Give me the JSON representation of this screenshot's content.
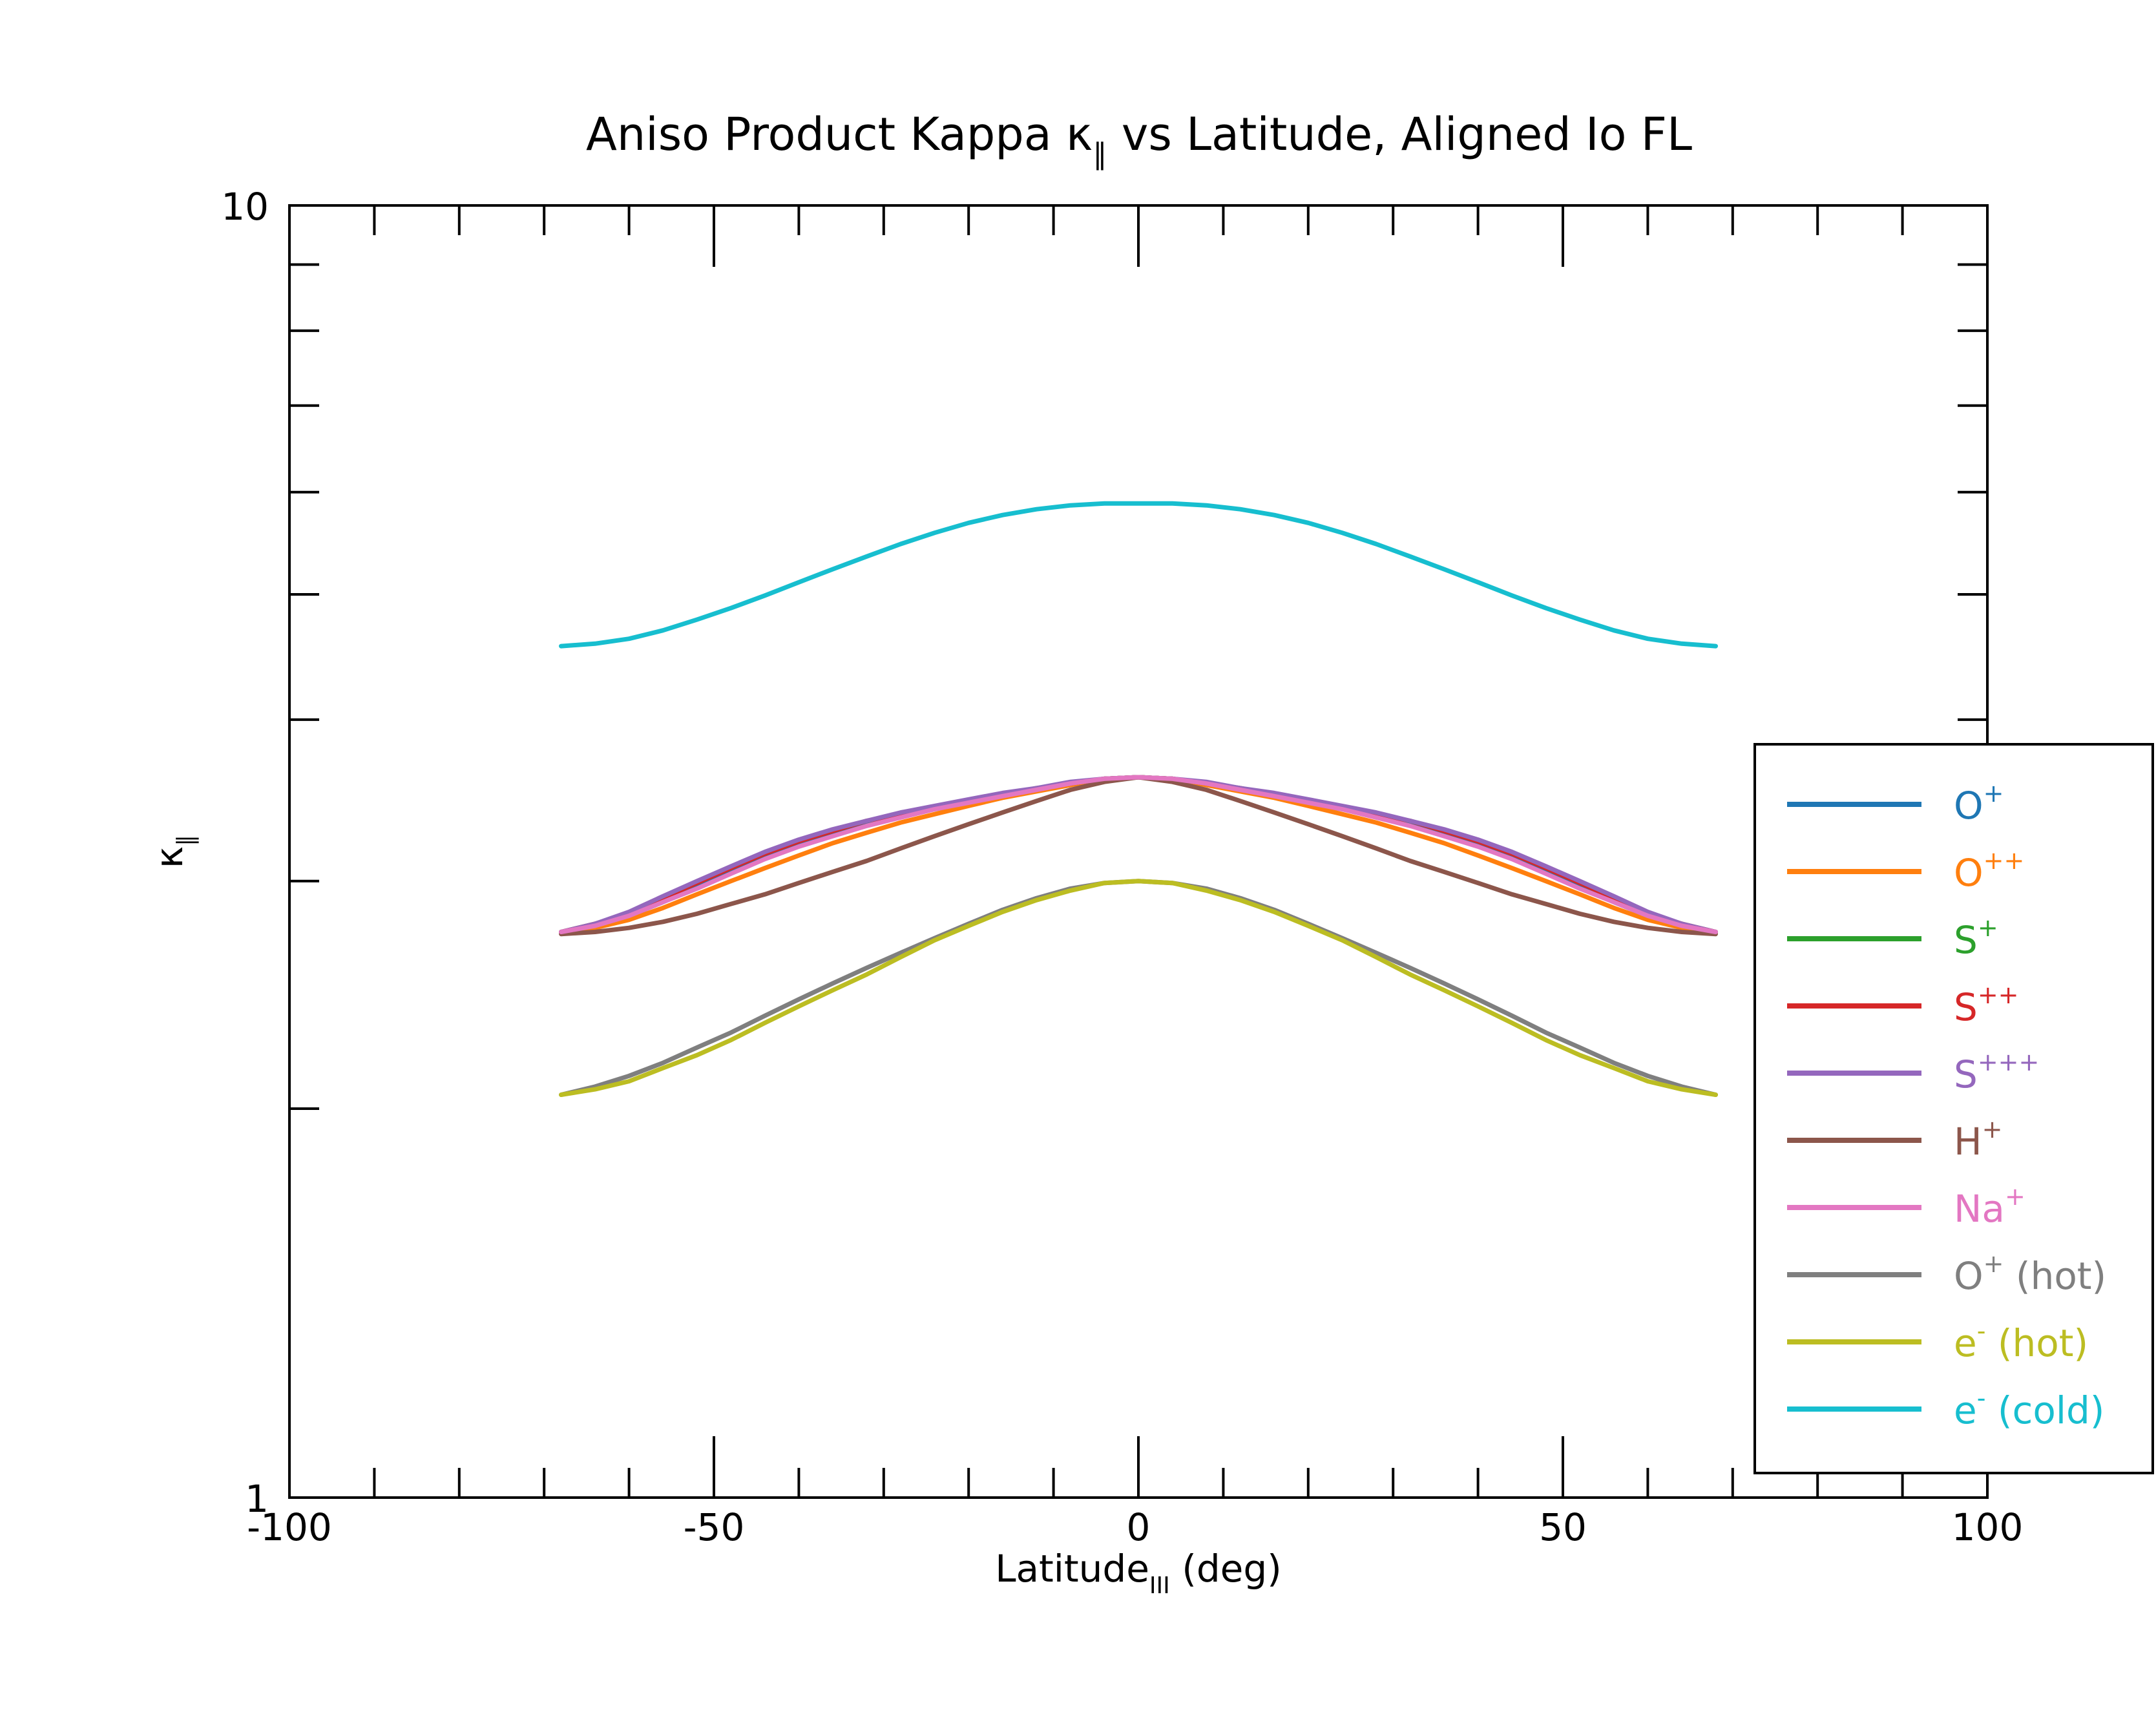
{
  "chart_data": {
    "type": "line",
    "title": {
      "main": "Aniso Product Kappa κ",
      "sub": "∥",
      "rest": " vs Latitude, Aligned Io FL"
    },
    "xlabel": {
      "main": "Latitude",
      "sub": "III",
      "rest": " (deg)"
    },
    "ylabel": {
      "main": "κ",
      "sub": "∥"
    },
    "xlim": [
      -100,
      100
    ],
    "ylim": [
      1,
      10
    ],
    "y_scale": "log",
    "x_ticks": [
      "-100",
      "-50",
      "0",
      "50",
      "100"
    ],
    "y_ticks": [
      "1",
      "10"
    ],
    "grid": false,
    "legend_position": "right",
    "x": [
      -68,
      -64,
      -60,
      -56,
      -52,
      -48,
      -44,
      -40,
      -36,
      -32,
      -28,
      -24,
      -20,
      -16,
      -12,
      -8,
      -4,
      0,
      4,
      8,
      12,
      16,
      20,
      24,
      28,
      32,
      36,
      40,
      44,
      48,
      52,
      56,
      60,
      64,
      68
    ],
    "series": [
      {
        "name": "O",
        "sup": "+",
        "rest": "",
        "color": "#1f77b4",
        "values": [
          2.74,
          2.77,
          2.82,
          2.89,
          2.97,
          3.05,
          3.13,
          3.2,
          3.27,
          3.32,
          3.37,
          3.41,
          3.45,
          3.49,
          3.53,
          3.57,
          3.6,
          3.61,
          3.6,
          3.57,
          3.53,
          3.49,
          3.45,
          3.41,
          3.37,
          3.32,
          3.27,
          3.2,
          3.13,
          3.05,
          2.97,
          2.89,
          2.82,
          2.77,
          2.74
        ]
      },
      {
        "name": "O",
        "sup": "++",
        "rest": "",
        "color": "#ff7f0e",
        "values": [
          2.74,
          2.76,
          2.8,
          2.86,
          2.93,
          3.0,
          3.07,
          3.14,
          3.21,
          3.27,
          3.33,
          3.38,
          3.43,
          3.48,
          3.52,
          3.56,
          3.6,
          3.61,
          3.6,
          3.56,
          3.52,
          3.48,
          3.43,
          3.38,
          3.33,
          3.27,
          3.21,
          3.14,
          3.07,
          3.0,
          2.93,
          2.86,
          2.8,
          2.76,
          2.74
        ]
      },
      {
        "name": "S",
        "sup": "+",
        "rest": "",
        "color": "#2ca02c",
        "values": [
          2.74,
          2.78,
          2.83,
          2.91,
          2.99,
          3.07,
          3.15,
          3.22,
          3.28,
          3.34,
          3.38,
          3.42,
          3.46,
          3.5,
          3.54,
          3.57,
          3.6,
          3.61,
          3.6,
          3.57,
          3.54,
          3.5,
          3.46,
          3.42,
          3.38,
          3.34,
          3.28,
          3.22,
          3.15,
          3.07,
          2.99,
          2.91,
          2.83,
          2.78,
          2.74
        ]
      },
      {
        "name": "S",
        "sup": "++",
        "rest": "",
        "color": "#d62728",
        "values": [
          2.74,
          2.78,
          2.83,
          2.91,
          2.99,
          3.07,
          3.15,
          3.22,
          3.28,
          3.34,
          3.38,
          3.42,
          3.46,
          3.5,
          3.54,
          3.57,
          3.6,
          3.61,
          3.6,
          3.57,
          3.54,
          3.5,
          3.46,
          3.42,
          3.38,
          3.34,
          3.28,
          3.22,
          3.15,
          3.07,
          2.99,
          2.91,
          2.83,
          2.78,
          2.74
        ]
      },
      {
        "name": "S",
        "sup": "+++",
        "rest": "",
        "color": "#9467bd",
        "values": [
          2.74,
          2.78,
          2.84,
          2.92,
          3.0,
          3.08,
          3.16,
          3.23,
          3.29,
          3.34,
          3.39,
          3.43,
          3.47,
          3.51,
          3.54,
          3.58,
          3.6,
          3.61,
          3.6,
          3.58,
          3.54,
          3.51,
          3.47,
          3.43,
          3.39,
          3.34,
          3.29,
          3.23,
          3.16,
          3.08,
          3.0,
          2.92,
          2.84,
          2.78,
          2.74
        ]
      },
      {
        "name": "H",
        "sup": "+",
        "rest": "",
        "color": "#8c564b",
        "values": [
          2.73,
          2.74,
          2.76,
          2.79,
          2.83,
          2.88,
          2.93,
          2.99,
          3.05,
          3.11,
          3.18,
          3.25,
          3.32,
          3.39,
          3.46,
          3.53,
          3.58,
          3.61,
          3.58,
          3.53,
          3.46,
          3.39,
          3.32,
          3.25,
          3.18,
          3.11,
          3.05,
          2.99,
          2.93,
          2.88,
          2.83,
          2.79,
          2.76,
          2.74,
          2.73
        ]
      },
      {
        "name": "Na",
        "sup": "+",
        "rest": "",
        "color": "#e377c2",
        "values": [
          2.74,
          2.77,
          2.82,
          2.89,
          2.96,
          3.04,
          3.12,
          3.19,
          3.25,
          3.31,
          3.36,
          3.41,
          3.45,
          3.49,
          3.53,
          3.57,
          3.6,
          3.61,
          3.6,
          3.57,
          3.53,
          3.49,
          3.45,
          3.41,
          3.36,
          3.31,
          3.25,
          3.19,
          3.12,
          3.04,
          2.96,
          2.89,
          2.82,
          2.77,
          2.74
        ]
      },
      {
        "name": "O",
        "sup": "+",
        "rest": " (hot)",
        "color": "#7f7f7f",
        "values": [
          2.05,
          2.08,
          2.12,
          2.17,
          2.23,
          2.29,
          2.36,
          2.43,
          2.5,
          2.57,
          2.64,
          2.71,
          2.78,
          2.85,
          2.91,
          2.96,
          2.99,
          3.0,
          2.99,
          2.96,
          2.91,
          2.85,
          2.78,
          2.71,
          2.64,
          2.57,
          2.5,
          2.43,
          2.36,
          2.29,
          2.23,
          2.17,
          2.12,
          2.08,
          2.05
        ]
      },
      {
        "name": "e",
        "sup": "-",
        "rest": " (hot)",
        "color": "#bcbd22",
        "values": [
          2.05,
          2.07,
          2.1,
          2.15,
          2.2,
          2.26,
          2.33,
          2.4,
          2.47,
          2.54,
          2.62,
          2.7,
          2.77,
          2.84,
          2.9,
          2.95,
          2.99,
          3.0,
          2.99,
          2.95,
          2.9,
          2.84,
          2.77,
          2.7,
          2.62,
          2.54,
          2.47,
          2.4,
          2.33,
          2.26,
          2.2,
          2.15,
          2.1,
          2.07,
          2.05
        ]
      },
      {
        "name": "e",
        "sup": "-",
        "rest": " (cold)",
        "color": "#17becf",
        "values": [
          4.56,
          4.58,
          4.62,
          4.69,
          4.78,
          4.88,
          4.99,
          5.11,
          5.23,
          5.35,
          5.47,
          5.58,
          5.68,
          5.76,
          5.82,
          5.86,
          5.88,
          5.88,
          5.88,
          5.86,
          5.82,
          5.76,
          5.68,
          5.58,
          5.47,
          5.35,
          5.23,
          5.11,
          4.99,
          4.88,
          4.78,
          4.69,
          4.62,
          4.58,
          4.56
        ]
      }
    ]
  }
}
